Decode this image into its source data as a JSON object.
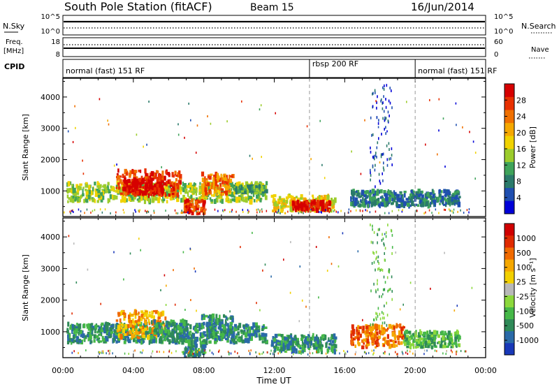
{
  "header": {
    "title": "South Pole Station (fitACF)",
    "beam": "Beam 15",
    "date": "16/Jun/2014"
  },
  "strips": {
    "nsky_label": "N.Sky",
    "nsearch_label": "N.Search",
    "nsky_ticks": [
      "10^5",
      "10^0"
    ],
    "nsearch_ticks": [
      "10^5",
      "10^0"
    ],
    "freq_label_1": "Freq.",
    "freq_label_2": "[MHz]",
    "freq_ticks": [
      "18",
      "8"
    ],
    "nave_label": "Nave",
    "nave_ticks": [
      "60",
      "0"
    ],
    "cpid_label": "CPID",
    "modes": [
      {
        "label": "normal (fast) 151 RF",
        "start": 0,
        "end": 14
      },
      {
        "label": "rbsp 200 RF",
        "start": 14,
        "end": 20
      },
      {
        "label": "normal (fast) 151 RF",
        "start": 20,
        "end": 24
      }
    ]
  },
  "chart_data": [
    {
      "type": "heatmap",
      "panel": "power",
      "ylabel": "Slant Range [km]",
      "xlabel": "",
      "xlim": [
        0,
        24
      ],
      "ylim": [
        180,
        4600
      ],
      "yticks": [
        "1000",
        "2000",
        "3000",
        "4000"
      ],
      "colorbar": {
        "label": "Power [dB]",
        "ticks": [
          "28",
          "24",
          "20",
          "16",
          "12",
          "8",
          "4"
        ],
        "colors": [
          "#0000d8",
          "#1f4fb0",
          "#2a7a6a",
          "#3fa35a",
          "#9ccc2c",
          "#f0d200",
          "#f5a800",
          "#f07000",
          "#e83000",
          "#d60000"
        ]
      },
      "regions": [
        {
          "t0": 0.2,
          "t1": 11.5,
          "r0": 650,
          "r1": 1250,
          "level": 4
        },
        {
          "t0": 3.0,
          "t1": 6.6,
          "r0": 850,
          "r1": 1650,
          "level": 8
        },
        {
          "t0": 3.4,
          "t1": 5.6,
          "r0": 900,
          "r1": 1350,
          "level": 9
        },
        {
          "t0": 7.8,
          "t1": 9.6,
          "r0": 850,
          "r1": 1550,
          "level": 7
        },
        {
          "t0": 6.8,
          "t1": 8.0,
          "r0": 250,
          "r1": 700,
          "level": 8
        },
        {
          "t0": 9.6,
          "t1": 11.5,
          "r0": 950,
          "r1": 1150,
          "level": 3
        },
        {
          "t0": 11.8,
          "t1": 15.4,
          "r0": 350,
          "r1": 850,
          "level": 5
        },
        {
          "t0": 13.0,
          "t1": 15.1,
          "r0": 380,
          "r1": 650,
          "level": 9
        },
        {
          "t0": 16.3,
          "t1": 22.5,
          "r0": 500,
          "r1": 1000,
          "level": 2
        },
        {
          "t0": 17.4,
          "t1": 18.7,
          "r0": 1100,
          "r1": 4400,
          "level": 1
        }
      ]
    },
    {
      "type": "heatmap",
      "panel": "velocity",
      "ylabel": "Slant Range [km]",
      "xlabel": "Time UT",
      "xlim": [
        0,
        24
      ],
      "ylim": [
        180,
        4600
      ],
      "xticks": [
        "00:00",
        "04:00",
        "08:00",
        "12:00",
        "16:00",
        "20:00",
        "00:00"
      ],
      "yticks": [
        "1000",
        "2000",
        "3000",
        "4000"
      ],
      "colorbar": {
        "label": "Velocity [m s⁻¹]",
        "ticks": [
          "1000",
          "500",
          "100",
          "25",
          "-25",
          "-100",
          "-500",
          "-1000"
        ],
        "colors": [
          "#1838b8",
          "#2a6aa8",
          "#2f8a58",
          "#46b848",
          "#8cd83c",
          "#b8b8b8",
          "#f2d000",
          "#f5a800",
          "#f06a00",
          "#e02a00",
          "#d00000"
        ]
      },
      "regions": [
        {
          "t0": 0.2,
          "t1": 11.5,
          "r0": 650,
          "r1": 1250,
          "level": 2
        },
        {
          "t0": 3.0,
          "t1": 5.8,
          "r0": 800,
          "r1": 1650,
          "level": 7
        },
        {
          "t0": 4.8,
          "t1": 7.0,
          "r0": 700,
          "r1": 1350,
          "level": 2
        },
        {
          "t0": 7.8,
          "t1": 9.6,
          "r0": 850,
          "r1": 1500,
          "level": 2
        },
        {
          "t0": 6.8,
          "t1": 8.0,
          "r0": 250,
          "r1": 700,
          "level": 2
        },
        {
          "t0": 11.8,
          "t1": 15.4,
          "r0": 350,
          "r1": 900,
          "level": 2
        },
        {
          "t0": 16.3,
          "t1": 19.3,
          "r0": 500,
          "r1": 1200,
          "level": 8
        },
        {
          "t0": 19.3,
          "t1": 22.5,
          "r0": 500,
          "r1": 1000,
          "level": 3
        },
        {
          "t0": 17.4,
          "t1": 18.7,
          "r0": 1100,
          "r1": 4400,
          "level": 3
        }
      ]
    }
  ]
}
